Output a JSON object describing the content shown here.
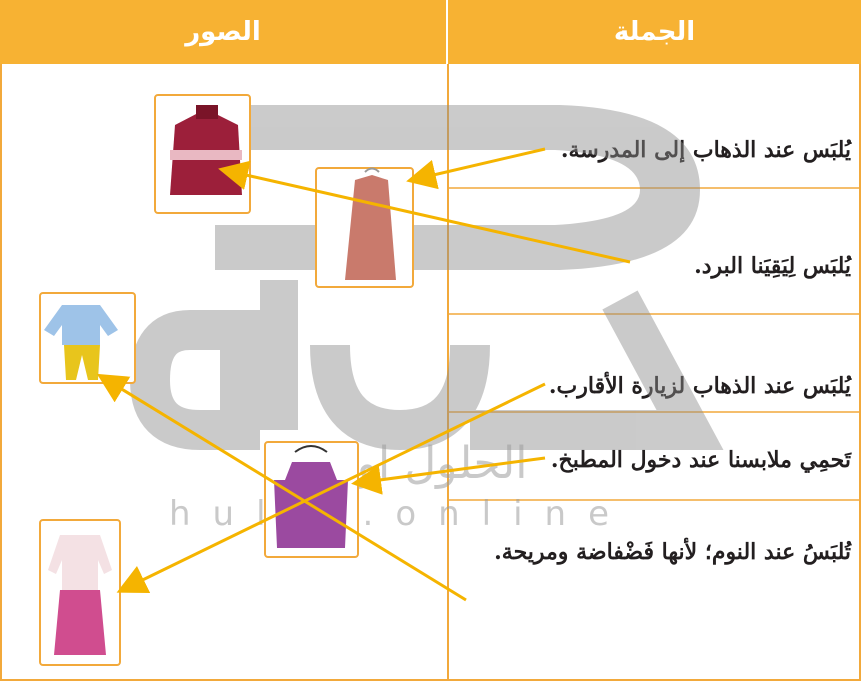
{
  "table": {
    "headers": [
      "الجملة",
      "الصور"
    ],
    "sentences": [
      "يُلبَس عند الذهاب إلى المدرسة.",
      "يُلبَس لِيَقِيَنا البرد.",
      "يُلبَس عند الذهاب لزيارة الأقارب.",
      "تَحمِي ملابسنا عند دخول المطبخ.",
      "تُلبَسُ عند النوم؛ لأنها فَضْفاضة ومريحة."
    ]
  },
  "watermark": {
    "arabic": "الحلول اونلاين",
    "latin": "hulul.online"
  }
}
